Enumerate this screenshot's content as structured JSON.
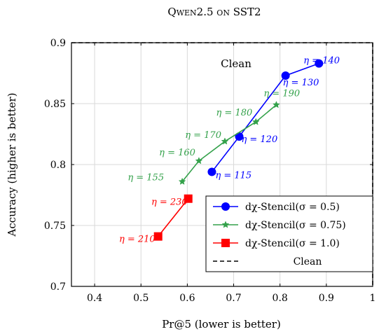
{
  "chart_data": {
    "type": "line",
    "title": "Qwen2.5 on SST2",
    "xlabel": "Pr@5 (lower is better)",
    "ylabel": "Accuracy (higher is better)",
    "xlim": [
      0.35,
      1.0
    ],
    "ylim": [
      0.7,
      0.9
    ],
    "xticks": [
      "0.4",
      "0.5",
      "0.6",
      "0.7",
      "0.8",
      "0.9",
      "1"
    ],
    "yticks": [
      "0.7",
      "0.75",
      "0.8",
      "0.85",
      "0.9"
    ],
    "grid": true,
    "legend_position": "bottom-right",
    "reference_line": {
      "name": "Clean",
      "x": 1.0,
      "y": 0.9,
      "label": "Clean",
      "color": "#000000"
    },
    "series": [
      {
        "name": "dχ-Stencil(σ = 0.5)",
        "color": "#0000ff",
        "marker": "circle",
        "points": [
          {
            "x": 0.653,
            "y": 0.794,
            "label": "η = 115"
          },
          {
            "x": 0.712,
            "y": 0.823,
            "label": "η = 120"
          },
          {
            "x": 0.812,
            "y": 0.873,
            "label": "η = 130"
          },
          {
            "x": 0.884,
            "y": 0.883,
            "label": "η = 140"
          }
        ]
      },
      {
        "name": "dχ-Stencil(σ = 0.75)",
        "color": "#33a14a",
        "marker": "star",
        "points": [
          {
            "x": 0.589,
            "y": 0.786,
            "label": "η = 155"
          },
          {
            "x": 0.625,
            "y": 0.803,
            "label": "η = 160"
          },
          {
            "x": 0.681,
            "y": 0.819,
            "label": "η = 170"
          },
          {
            "x": 0.748,
            "y": 0.835,
            "label": "η = 180"
          },
          {
            "x": 0.792,
            "y": 0.849,
            "label": "η = 190"
          }
        ]
      },
      {
        "name": "dχ-Stencil(σ = 1.0)",
        "color": "#ff0000",
        "marker": "square",
        "points": [
          {
            "x": 0.537,
            "y": 0.741,
            "label": "η = 210"
          },
          {
            "x": 0.602,
            "y": 0.772,
            "label": "η = 230"
          }
        ]
      }
    ]
  }
}
